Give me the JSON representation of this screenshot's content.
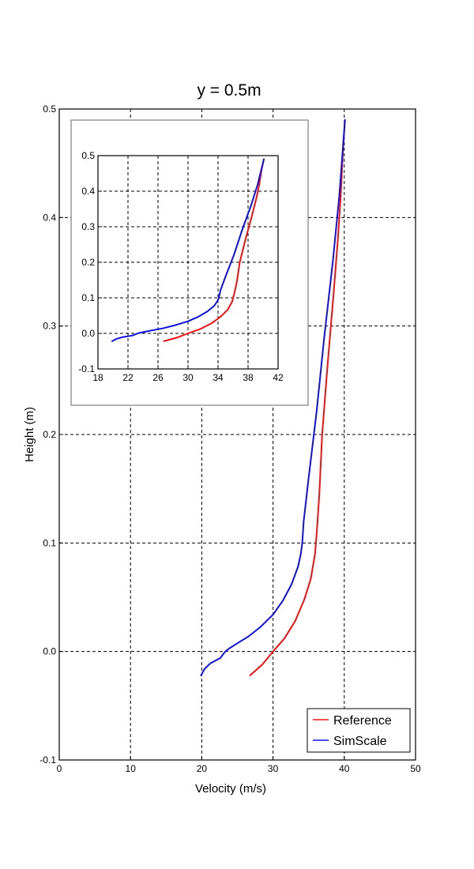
{
  "chart_data": [
    {
      "type": "line",
      "title": "y = 0.5m",
      "xlabel": "Velocity (m/s)",
      "ylabel": "Height (m)",
      "xlim": [
        0,
        50
      ],
      "ylim": [
        -0.1,
        0.5
      ],
      "xticks": [
        0,
        10,
        20,
        30,
        40,
        50
      ],
      "xtick_labels": [
        "0",
        "10",
        "20",
        "30",
        "40",
        "50"
      ],
      "yticks": [
        -0.1,
        0.0,
        0.1,
        0.2,
        0.3,
        0.4,
        0.5
      ],
      "ytick_labels": [
        "-0.1",
        "0.0",
        "0.1",
        "0.2",
        "0.3",
        "0.4",
        "0.5"
      ],
      "grid": true,
      "legend_position": "bottom-right",
      "series": [
        {
          "name": "Reference",
          "color": "#ee1111",
          "x": [
            26.8,
            28.5,
            30.0,
            31.6,
            33.1,
            34.4,
            35.3,
            35.9,
            36.2,
            36.5,
            36.9,
            37.6,
            38.5,
            39.1,
            39.5,
            39.8,
            40.1
          ],
          "y": [
            -0.022,
            -0.012,
            0.0,
            0.012,
            0.028,
            0.048,
            0.067,
            0.09,
            0.115,
            0.145,
            0.2,
            0.26,
            0.33,
            0.38,
            0.42,
            0.46,
            0.49
          ]
        },
        {
          "name": "SimScale",
          "color": "#1111dd",
          "x": [
            19.9,
            20.4,
            21.2,
            22.6,
            23.3,
            23.9,
            25.1,
            26.6,
            28.3,
            30.0,
            31.4,
            32.6,
            33.5,
            33.9,
            34.1,
            34.3,
            35.0,
            36.1,
            37.2,
            38.4,
            39.3,
            40.1
          ],
          "y": [
            -0.022,
            -0.016,
            -0.011,
            -0.006,
            0.0,
            0.003,
            0.008,
            0.014,
            0.023,
            0.034,
            0.047,
            0.062,
            0.078,
            0.09,
            0.1,
            0.12,
            0.16,
            0.22,
            0.29,
            0.36,
            0.42,
            0.49
          ]
        }
      ]
    },
    {
      "type": "line",
      "title": "",
      "xlabel": "",
      "ylabel": "",
      "xlim": [
        18,
        42
      ],
      "ylim": [
        -0.1,
        0.5
      ],
      "xticks": [
        18,
        22,
        26,
        30,
        34,
        38,
        42
      ],
      "xtick_labels": [
        "18",
        "22",
        "26",
        "30",
        "34",
        "38",
        "42"
      ],
      "yticks": [
        -0.1,
        0.0,
        0.1,
        0.2,
        0.3,
        0.4,
        0.5
      ],
      "ytick_labels": [
        "-0.1",
        "0.0",
        "0.1",
        "0.2",
        "0.3",
        "0.4",
        "0.5"
      ],
      "grid": true,
      "legend_position": "none",
      "series": [
        {
          "name": "Reference",
          "color": "#ee1111",
          "x": [
            26.8,
            28.5,
            30.0,
            31.6,
            33.1,
            34.4,
            35.3,
            35.9,
            36.2,
            36.5,
            36.9,
            37.6,
            38.5,
            39.1,
            39.5,
            39.8,
            40.1
          ],
          "y": [
            -0.022,
            -0.012,
            0.0,
            0.012,
            0.028,
            0.048,
            0.067,
            0.09,
            0.115,
            0.145,
            0.2,
            0.26,
            0.33,
            0.38,
            0.42,
            0.46,
            0.49
          ]
        },
        {
          "name": "SimScale",
          "color": "#1111dd",
          "x": [
            19.9,
            20.4,
            21.2,
            22.6,
            23.3,
            23.9,
            25.1,
            26.6,
            28.3,
            30.0,
            31.4,
            32.6,
            33.5,
            33.9,
            34.1,
            34.3,
            35.0,
            36.1,
            37.2,
            38.4,
            39.3,
            40.1
          ],
          "y": [
            -0.022,
            -0.016,
            -0.011,
            -0.006,
            0.0,
            0.003,
            0.008,
            0.014,
            0.023,
            0.034,
            0.047,
            0.062,
            0.078,
            0.09,
            0.1,
            0.12,
            0.16,
            0.22,
            0.29,
            0.36,
            0.42,
            0.49
          ]
        }
      ]
    }
  ]
}
